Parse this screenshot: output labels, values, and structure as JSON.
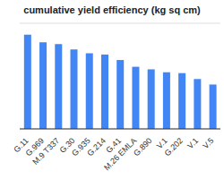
{
  "chart_data": {
    "type": "bar",
    "title": "cumulative yield efficiency (kg sq cm)",
    "categories": [
      "G.11",
      "G.969",
      "M.9 T337",
      "G.30",
      "G.935",
      "G.214",
      "G.41",
      "M.26 EMLA",
      "G.890",
      "V.1",
      "G.202",
      "V.1",
      "V.5"
    ],
    "values": [
      2.23,
      2.05,
      2.01,
      1.88,
      1.79,
      1.76,
      1.63,
      1.47,
      1.41,
      1.34,
      1.32,
      1.18,
      1.05
    ],
    "color": "#4285f4",
    "ylim": [
      0,
      2.5
    ],
    "yticks": [
      0,
      0.5,
      1,
      1.5,
      2,
      2.5
    ],
    "grid": true,
    "tick_labels": "x"
  }
}
